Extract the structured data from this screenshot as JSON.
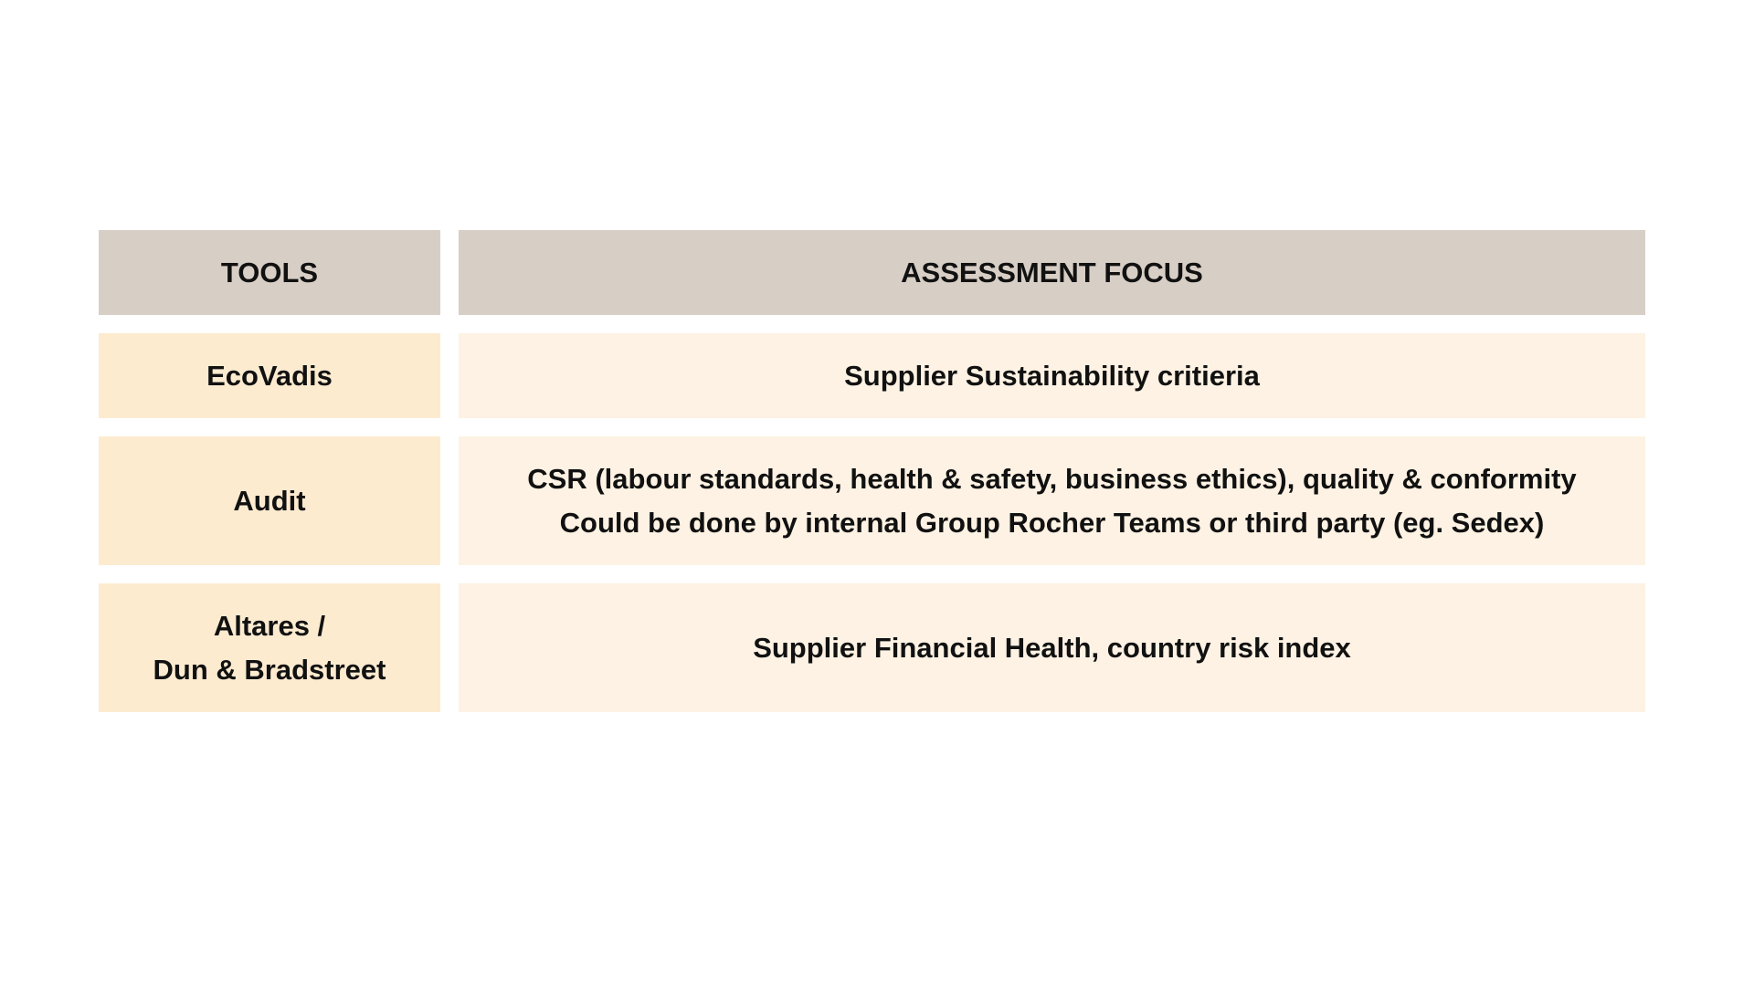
{
  "table": {
    "headers": [
      "TOOLS",
      "ASSESSMENT FOCUS"
    ],
    "rows": [
      {
        "tool": [
          "EcoVadis"
        ],
        "focus": [
          "Supplier Sustainability critieria"
        ]
      },
      {
        "tool": [
          "Audit"
        ],
        "focus": [
          "CSR (labour standards, health & safety, business ethics), quality & conformity",
          "Could be done by internal Group Rocher Teams or third party (eg. Sedex)"
        ]
      },
      {
        "tool": [
          "Altares /",
          "Dun & Bradstreet"
        ],
        "focus": [
          "Supplier Financial Health, country risk index"
        ]
      }
    ]
  },
  "colors": {
    "header": "#d7cec5",
    "tool_cell": "#fdebd0",
    "focus_cell": "#fdf2e3"
  }
}
